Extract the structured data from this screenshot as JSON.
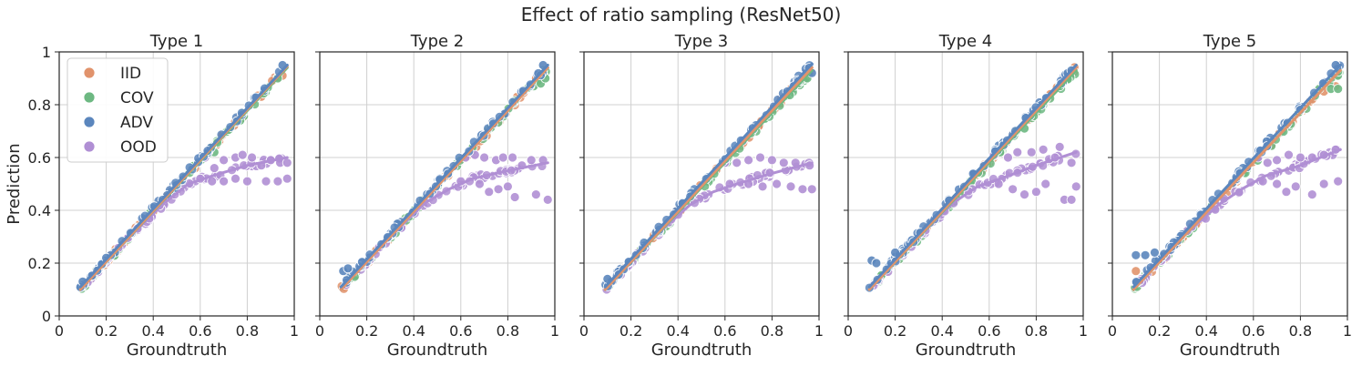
{
  "figure": {
    "title": "Effect of ratio sampling (ResNet50)"
  },
  "colors": {
    "IID": "#e1936c",
    "COV": "#6db882",
    "ADV": "#5b86bd",
    "OOD": "#b08fd4",
    "grid": "#d0d0d0",
    "axis": "#262626"
  },
  "chart_data": [
    {
      "type": "scatter",
      "title": "Type 1",
      "xlabel": "Groundtruth",
      "ylabel": "Prediction",
      "xlim": [
        0,
        1
      ],
      "ylim": [
        0,
        1
      ],
      "xticks": [
        "0",
        "0.2",
        "0.4",
        "0.6",
        "0.8",
        "1"
      ],
      "yticks": [
        "0",
        "0.2",
        "0.4",
        "0.6",
        "0.8",
        "1"
      ],
      "legend": {
        "position": "top-left",
        "entries": [
          "IID",
          "COV",
          "ADV",
          "OOD"
        ]
      },
      "series": [
        {
          "name": "IID",
          "trend": [
            [
              0.09,
              0.1
            ],
            [
              0.97,
              0.945
            ]
          ],
          "outliers": [
            [
              0.78,
              0.75
            ],
            [
              0.86,
              0.83
            ],
            [
              0.95,
              0.91
            ]
          ]
        },
        {
          "name": "COV",
          "trend": [
            [
              0.09,
              0.1
            ],
            [
              0.97,
              0.94
            ]
          ],
          "outliers": [
            [
              0.66,
              0.62
            ],
            [
              0.77,
              0.74
            ],
            [
              0.93,
              0.9
            ]
          ]
        },
        {
          "name": "ADV",
          "trend": [
            [
              0.09,
              0.11
            ],
            [
              0.97,
              0.95
            ]
          ],
          "outliers": [
            [
              0.1,
              0.13
            ],
            [
              0.2,
              0.22
            ],
            [
              0.95,
              0.95
            ]
          ]
        },
        {
          "name": "OOD",
          "trend": [
            [
              0.09,
              0.1
            ],
            [
              0.3,
              0.3
            ],
            [
              0.45,
              0.43
            ],
            [
              0.55,
              0.5
            ],
            [
              0.65,
              0.53
            ],
            [
              0.8,
              0.57
            ],
            [
              0.97,
              0.6
            ]
          ],
          "outliers": [
            [
              0.62,
              0.6
            ],
            [
              0.66,
              0.56
            ],
            [
              0.7,
              0.59
            ],
            [
              0.75,
              0.6
            ],
            [
              0.78,
              0.61
            ],
            [
              0.82,
              0.6
            ],
            [
              0.86,
              0.57
            ],
            [
              0.9,
              0.59
            ],
            [
              0.94,
              0.58
            ],
            [
              0.97,
              0.58
            ],
            [
              0.7,
              0.51
            ],
            [
              0.75,
              0.52
            ],
            [
              0.8,
              0.51
            ],
            [
              0.88,
              0.51
            ],
            [
              0.93,
              0.51
            ],
            [
              0.97,
              0.52
            ],
            [
              0.6,
              0.52
            ],
            [
              0.65,
              0.51
            ]
          ]
        }
      ]
    },
    {
      "type": "scatter",
      "title": "Type 2",
      "xlabel": "Groundtruth",
      "ylabel": "",
      "xlim": [
        0,
        1
      ],
      "ylim": [
        0,
        1
      ],
      "xticks": [
        "0",
        "0.2",
        "0.4",
        "0.6",
        "0.8",
        "1"
      ],
      "yticks": [
        "",
        "",
        "",
        "",
        "",
        ""
      ],
      "series": [
        {
          "name": "IID",
          "trend": [
            [
              0.09,
              0.1
            ],
            [
              0.97,
              0.94
            ]
          ],
          "outliers": [
            [
              0.84,
              0.83
            ],
            [
              0.92,
              0.9
            ]
          ]
        },
        {
          "name": "COV",
          "trend": [
            [
              0.09,
              0.1
            ],
            [
              0.97,
              0.94
            ]
          ],
          "outliers": [
            [
              0.91,
              0.87
            ],
            [
              0.94,
              0.88
            ],
            [
              0.96,
              0.9
            ]
          ]
        },
        {
          "name": "ADV",
          "trend": [
            [
              0.09,
              0.11
            ],
            [
              0.97,
              0.95
            ]
          ],
          "outliers": [
            [
              0.1,
              0.17
            ],
            [
              0.12,
              0.18
            ],
            [
              0.95,
              0.95
            ]
          ]
        },
        {
          "name": "OOD",
          "trend": [
            [
              0.09,
              0.1
            ],
            [
              0.3,
              0.3
            ],
            [
              0.45,
              0.43
            ],
            [
              0.55,
              0.48
            ],
            [
              0.65,
              0.52
            ],
            [
              0.8,
              0.55
            ],
            [
              0.97,
              0.58
            ]
          ],
          "outliers": [
            [
              0.62,
              0.6
            ],
            [
              0.66,
              0.61
            ],
            [
              0.7,
              0.6
            ],
            [
              0.75,
              0.59
            ],
            [
              0.78,
              0.6
            ],
            [
              0.82,
              0.6
            ],
            [
              0.86,
              0.57
            ],
            [
              0.9,
              0.59
            ],
            [
              0.95,
              0.59
            ],
            [
              0.68,
              0.5
            ],
            [
              0.72,
              0.47
            ],
            [
              0.76,
              0.48
            ],
            [
              0.8,
              0.49
            ],
            [
              0.83,
              0.45
            ],
            [
              0.92,
              0.46
            ],
            [
              0.97,
              0.44
            ],
            [
              0.6,
              0.51
            ]
          ]
        }
      ]
    },
    {
      "type": "scatter",
      "title": "Type 3",
      "xlabel": "Groundtruth",
      "ylabel": "",
      "xlim": [
        0,
        1
      ],
      "ylim": [
        0,
        1
      ],
      "xticks": [
        "0",
        "0.2",
        "0.4",
        "0.6",
        "0.8",
        "1"
      ],
      "yticks": [
        "",
        "",
        "",
        "",
        "",
        ""
      ],
      "series": [
        {
          "name": "IID",
          "trend": [
            [
              0.09,
              0.1
            ],
            [
              0.97,
              0.94
            ]
          ],
          "outliers": [
            [
              0.88,
              0.86
            ]
          ]
        },
        {
          "name": "COV",
          "trend": [
            [
              0.09,
              0.1
            ],
            [
              0.97,
              0.93
            ]
          ],
          "outliers": [
            [
              0.92,
              0.89
            ],
            [
              0.95,
              0.9
            ]
          ]
        },
        {
          "name": "ADV",
          "trend": [
            [
              0.09,
              0.11
            ],
            [
              0.97,
              0.955
            ]
          ],
          "outliers": [
            [
              0.1,
              0.14
            ],
            [
              0.97,
              0.92
            ]
          ]
        },
        {
          "name": "OOD",
          "trend": [
            [
              0.09,
              0.1
            ],
            [
              0.3,
              0.3
            ],
            [
              0.45,
              0.42
            ],
            [
              0.55,
              0.47
            ],
            [
              0.65,
              0.5
            ],
            [
              0.8,
              0.54
            ],
            [
              0.97,
              0.58
            ]
          ],
          "outliers": [
            [
              0.6,
              0.58
            ],
            [
              0.65,
              0.58
            ],
            [
              0.7,
              0.59
            ],
            [
              0.75,
              0.6
            ],
            [
              0.8,
              0.59
            ],
            [
              0.85,
              0.58
            ],
            [
              0.9,
              0.58
            ],
            [
              0.96,
              0.57
            ],
            [
              0.62,
              0.5
            ],
            [
              0.7,
              0.5
            ],
            [
              0.76,
              0.49
            ],
            [
              0.82,
              0.5
            ],
            [
              0.88,
              0.49
            ],
            [
              0.93,
              0.48
            ],
            [
              0.97,
              0.48
            ]
          ]
        }
      ]
    },
    {
      "type": "scatter",
      "title": "Type 4",
      "xlabel": "Groundtruth",
      "ylabel": "",
      "xlim": [
        0,
        1
      ],
      "ylim": [
        0,
        1
      ],
      "xticks": [
        "0",
        "0.2",
        "0.4",
        "0.6",
        "0.8",
        "1"
      ],
      "yticks": [
        "",
        "",
        "",
        "",
        "",
        ""
      ],
      "series": [
        {
          "name": "IID",
          "trend": [
            [
              0.09,
              0.1
            ],
            [
              0.97,
              0.94
            ]
          ],
          "outliers": [
            [
              0.86,
              0.84
            ]
          ]
        },
        {
          "name": "COV",
          "trend": [
            [
              0.09,
              0.1
            ],
            [
              0.97,
              0.93
            ]
          ],
          "outliers": [
            [
              0.75,
              0.71
            ],
            [
              0.9,
              0.87
            ]
          ]
        },
        {
          "name": "ADV",
          "trend": [
            [
              0.09,
              0.11
            ],
            [
              0.97,
              0.95
            ]
          ],
          "outliers": [
            [
              0.1,
              0.21
            ],
            [
              0.12,
              0.2
            ],
            [
              0.2,
              0.24
            ],
            [
              0.95,
              0.93
            ]
          ]
        },
        {
          "name": "OOD",
          "trend": [
            [
              0.09,
              0.1
            ],
            [
              0.3,
              0.3
            ],
            [
              0.45,
              0.43
            ],
            [
              0.55,
              0.49
            ],
            [
              0.65,
              0.52
            ],
            [
              0.8,
              0.57
            ],
            [
              0.97,
              0.62
            ]
          ],
          "outliers": [
            [
              0.62,
              0.61
            ],
            [
              0.68,
              0.6
            ],
            [
              0.72,
              0.62
            ],
            [
              0.78,
              0.62
            ],
            [
              0.83,
              0.63
            ],
            [
              0.88,
              0.6
            ],
            [
              0.9,
              0.64
            ],
            [
              0.95,
              0.58
            ],
            [
              0.64,
              0.5
            ],
            [
              0.7,
              0.48
            ],
            [
              0.75,
              0.46
            ],
            [
              0.8,
              0.47
            ],
            [
              0.84,
              0.5
            ],
            [
              0.92,
              0.44
            ],
            [
              0.95,
              0.44
            ],
            [
              0.97,
              0.49
            ]
          ]
        }
      ]
    },
    {
      "type": "scatter",
      "title": "Type 5",
      "xlabel": "Groundtruth",
      "ylabel": "",
      "xlim": [
        0,
        1
      ],
      "ylim": [
        0,
        1
      ],
      "xticks": [
        "0",
        "0.2",
        "0.4",
        "0.6",
        "0.8",
        "1"
      ],
      "yticks": [
        "",
        "",
        "",
        "",
        "",
        ""
      ],
      "series": [
        {
          "name": "IID",
          "trend": [
            [
              0.09,
              0.1
            ],
            [
              0.97,
              0.93
            ]
          ],
          "outliers": [
            [
              0.1,
              0.17
            ],
            [
              0.85,
              0.82
            ],
            [
              0.9,
              0.85
            ],
            [
              0.95,
              0.87
            ]
          ]
        },
        {
          "name": "COV",
          "trend": [
            [
              0.09,
              0.1
            ],
            [
              0.97,
              0.93
            ]
          ],
          "outliers": [
            [
              0.88,
              0.86
            ],
            [
              0.93,
              0.86
            ],
            [
              0.96,
              0.86
            ]
          ]
        },
        {
          "name": "ADV",
          "trend": [
            [
              0.09,
              0.11
            ],
            [
              0.97,
              0.95
            ]
          ],
          "outliers": [
            [
              0.1,
              0.23
            ],
            [
              0.14,
              0.23
            ],
            [
              0.18,
              0.24
            ],
            [
              0.95,
              0.95
            ]
          ]
        },
        {
          "name": "OOD",
          "trend": [
            [
              0.09,
              0.1
            ],
            [
              0.3,
              0.3
            ],
            [
              0.45,
              0.42
            ],
            [
              0.55,
              0.48
            ],
            [
              0.65,
              0.53
            ],
            [
              0.8,
              0.57
            ],
            [
              0.97,
              0.63
            ]
          ],
          "outliers": [
            [
              0.62,
              0.6
            ],
            [
              0.66,
              0.58
            ],
            [
              0.7,
              0.59
            ],
            [
              0.75,
              0.61
            ],
            [
              0.8,
              0.6
            ],
            [
              0.85,
              0.6
            ],
            [
              0.9,
              0.61
            ],
            [
              0.95,
              0.63
            ],
            [
              0.64,
              0.51
            ],
            [
              0.7,
              0.5
            ],
            [
              0.74,
              0.47
            ],
            [
              0.78,
              0.49
            ],
            [
              0.85,
              0.46
            ],
            [
              0.9,
              0.5
            ],
            [
              0.96,
              0.51
            ]
          ]
        }
      ]
    }
  ]
}
